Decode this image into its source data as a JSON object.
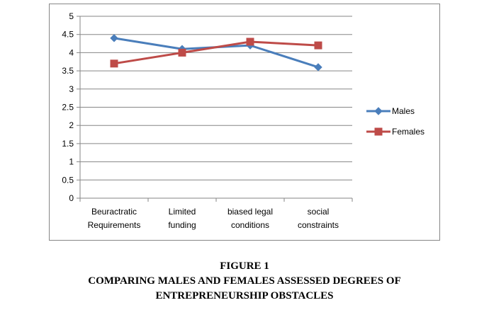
{
  "chart_data": {
    "type": "line",
    "categories": [
      [
        "Beuractratic",
        "Requirements"
      ],
      [
        "Limited",
        "funding"
      ],
      [
        "biased legal",
        "conditions"
      ],
      [
        "social",
        "constraints"
      ]
    ],
    "series": [
      {
        "name": "Males",
        "values": [
          4.4,
          4.1,
          4.2,
          3.6
        ],
        "color": "#4a7ebb",
        "marker": "diamond"
      },
      {
        "name": "Females",
        "values": [
          3.7,
          4.0,
          4.3,
          4.2
        ],
        "color": "#be4b48",
        "marker": "square"
      }
    ],
    "ylim": [
      0,
      5
    ],
    "yticks": [
      "0",
      "0.5",
      "1",
      "1.5",
      "2",
      "2.5",
      "3",
      "3.5",
      "4",
      "4.5",
      "5"
    ],
    "ytick_values": [
      0,
      0.5,
      1,
      1.5,
      2,
      2.5,
      3,
      3.5,
      4,
      4.5,
      5
    ],
    "grid": true,
    "legend": "right"
  },
  "caption": {
    "label": "FIGURE 1",
    "line1": "COMPARING MALES AND FEMALES ASSESSED DEGREES OF",
    "line2": "ENTREPRENEURSHIP OBSTACLES"
  }
}
